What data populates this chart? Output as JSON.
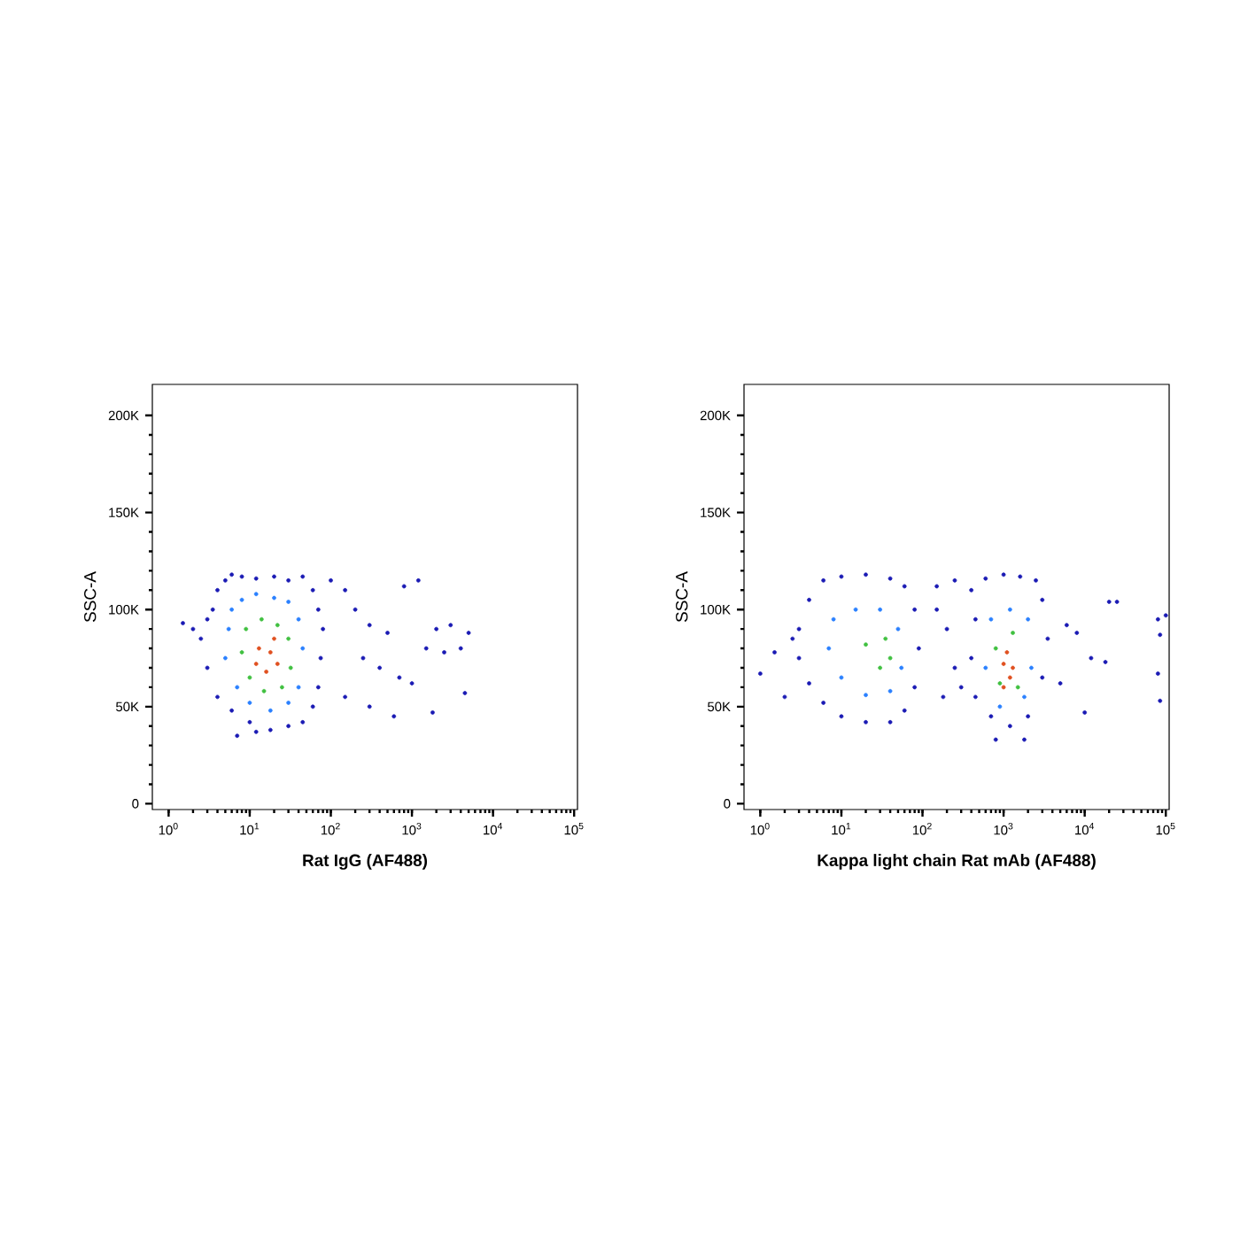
{
  "chart_data": [
    {
      "type": "scatter",
      "xlabel": "Rat IgG (AF488)",
      "ylabel": "SSC-A",
      "log": "x",
      "xlim": [
        0.63,
        110000
      ],
      "ylim": [
        -3000,
        216000
      ],
      "xticks": [
        {
          "value": 1,
          "label": "10$^{0}$"
        },
        {
          "value": 10,
          "label": "10$^{1}$"
        },
        {
          "value": 100,
          "label": "10$^{2}$"
        },
        {
          "value": 1000,
          "label": "10$^{3}$"
        },
        {
          "value": 10000,
          "label": "10$^{4}$"
        },
        {
          "value": 100000,
          "label": "10$^{5}$"
        }
      ],
      "yticks": [
        {
          "value": 0,
          "label": "0"
        },
        {
          "value": 50000,
          "label": "50K"
        },
        {
          "value": 100000,
          "label": "100K"
        },
        {
          "value": 150000,
          "label": "150K"
        },
        {
          "value": 200000,
          "label": "200K"
        }
      ],
      "series": [
        {
          "color": "#1a1ab4",
          "x": [
            3,
            4,
            5,
            6,
            8,
            12,
            20,
            30,
            45,
            60,
            70,
            80,
            75,
            70,
            60,
            45,
            30,
            18,
            10,
            6,
            4,
            3,
            2.5,
            3.5,
            100,
            150,
            200,
            300,
            500,
            800,
            1200,
            2000,
            3000,
            5000,
            250,
            400,
            700,
            1000,
            1500,
            2500,
            4000,
            600,
            1800,
            4500,
            2,
            1.5,
            7,
            12,
            150,
            300
          ],
          "values": [
            95000,
            110000,
            115000,
            118000,
            117000,
            116000,
            117000,
            115000,
            117000,
            110000,
            100000,
            90000,
            75000,
            60000,
            50000,
            42000,
            40000,
            38000,
            42000,
            48000,
            55000,
            70000,
            85000,
            100000,
            115000,
            110000,
            100000,
            92000,
            88000,
            112000,
            115000,
            90000,
            92000,
            88000,
            75000,
            70000,
            65000,
            62000,
            80000,
            78000,
            80000,
            45000,
            47000,
            57000,
            90000,
            93000,
            35000,
            37000,
            55000,
            50000
          ]
        },
        {
          "color": "#2a80ff",
          "x": [
            6,
            8,
            12,
            20,
            30,
            40,
            45,
            40,
            30,
            18,
            10,
            7,
            5,
            5.5
          ],
          "values": [
            100000,
            105000,
            108000,
            106000,
            104000,
            95000,
            80000,
            60000,
            52000,
            48000,
            52000,
            60000,
            75000,
            90000
          ]
        },
        {
          "color": "#40c040",
          "x": [
            9,
            14,
            22,
            30,
            32,
            25,
            15,
            10,
            8
          ],
          "values": [
            90000,
            95000,
            92000,
            85000,
            70000,
            60000,
            58000,
            65000,
            78000
          ]
        },
        {
          "color": "#e05020",
          "x": [
            13,
            18,
            22,
            16,
            12,
            20
          ],
          "values": [
            80000,
            78000,
            72000,
            68000,
            72000,
            85000
          ]
        }
      ]
    },
    {
      "type": "scatter",
      "xlabel": "Kappa light chain Rat mAb (AF488)",
      "ylabel": "SSC-A",
      "log": "x",
      "xlim": [
        0.63,
        110000
      ],
      "ylim": [
        -3000,
        216000
      ],
      "xticks": [
        {
          "value": 1,
          "label": "10$^{0}$"
        },
        {
          "value": 10,
          "label": "10$^{1}$"
        },
        {
          "value": 100,
          "label": "10$^{2}$"
        },
        {
          "value": 1000,
          "label": "10$^{3}$"
        },
        {
          "value": 10000,
          "label": "10$^{4}$"
        },
        {
          "value": 100000,
          "label": "10$^{5}$"
        }
      ],
      "yticks": [
        {
          "value": 0,
          "label": "0"
        },
        {
          "value": 50000,
          "label": "50K"
        },
        {
          "value": 100000,
          "label": "100K"
        },
        {
          "value": 150000,
          "label": "150K"
        },
        {
          "value": 200000,
          "label": "200K"
        }
      ],
      "series": [
        {
          "color": "#1a1ab4",
          "x": [
            3,
            4,
            6,
            10,
            20,
            40,
            60,
            80,
            90,
            80,
            60,
            40,
            20,
            10,
            6,
            4,
            3,
            2.5,
            150,
            200,
            250,
            180,
            300,
            150,
            250,
            400,
            600,
            1000,
            1600,
            2500,
            3000,
            3500,
            3000,
            2000,
            1200,
            700,
            450,
            400,
            450,
            800,
            1800,
            1.5,
            1,
            2,
            5000,
            6000,
            8000,
            10000,
            12000,
            18000,
            20000,
            25000,
            80000,
            85000,
            80000,
            85000,
            100000
          ],
          "values": [
            90000,
            105000,
            115000,
            117000,
            118000,
            116000,
            112000,
            100000,
            80000,
            60000,
            48000,
            42000,
            42000,
            45000,
            52000,
            62000,
            75000,
            85000,
            100000,
            90000,
            70000,
            55000,
            60000,
            112000,
            115000,
            110000,
            116000,
            118000,
            117000,
            115000,
            105000,
            85000,
            65000,
            45000,
            40000,
            45000,
            55000,
            75000,
            95000,
            33000,
            33000,
            78000,
            67000,
            55000,
            62000,
            92000,
            88000,
            47000,
            75000,
            73000,
            104000,
            104000,
            95000,
            87000,
            67000,
            53000,
            97000
          ]
        },
        {
          "color": "#2a80ff",
          "x": [
            8,
            15,
            30,
            50,
            55,
            40,
            20,
            10,
            7,
            700,
            1200,
            2000,
            2200,
            1800,
            900,
            600
          ],
          "values": [
            95000,
            100000,
            100000,
            90000,
            70000,
            58000,
            56000,
            65000,
            80000,
            95000,
            100000,
            95000,
            70000,
            55000,
            50000,
            70000
          ]
        },
        {
          "color": "#40c040",
          "x": [
            20,
            35,
            30,
            40,
            800,
            1300,
            1500,
            900
          ],
          "values": [
            82000,
            85000,
            70000,
            75000,
            80000,
            88000,
            60000,
            62000
          ]
        },
        {
          "color": "#e05020",
          "x": [
            1000,
            1200,
            1100,
            1300,
            1000
          ],
          "values": [
            72000,
            65000,
            78000,
            70000,
            60000
          ]
        }
      ]
    }
  ]
}
